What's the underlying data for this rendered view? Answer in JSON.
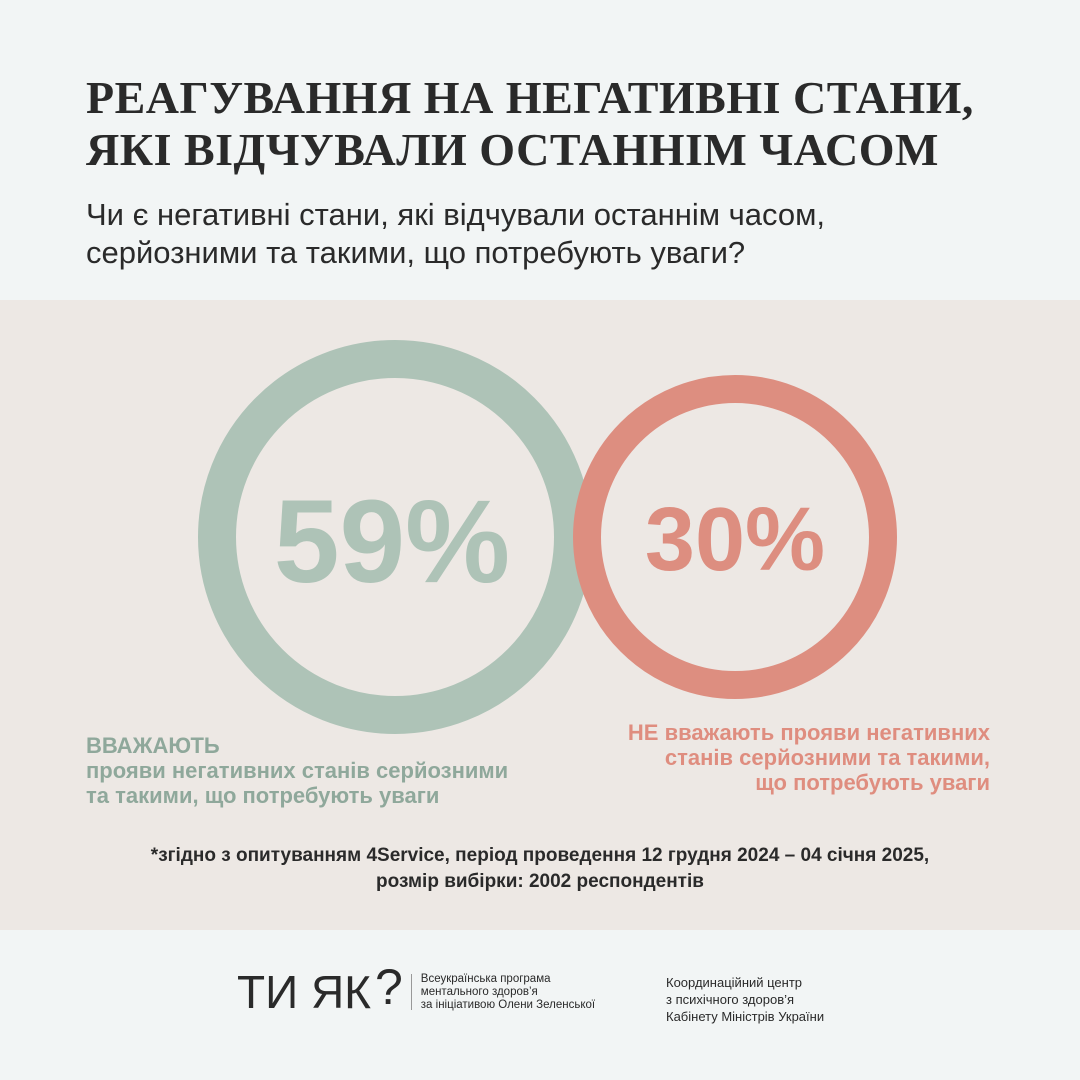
{
  "title": [
    "РЕАГУВАННЯ НА НЕГАТИВНІ СТАНИ,",
    "ЯКІ ВІДЧУВАЛИ ОСТАННІМ ЧАСОМ"
  ],
  "subtitle": [
    "Чи є негативні стани, які відчували останнім часом,",
    "серйозними та такими, що  потребують уваги?"
  ],
  "chart_data": {
    "type": "pie",
    "categories": [
      "ВВАЖАЮТЬ прояви негативних станів серйозними та такими, що потребують уваги",
      "НЕ вважають прояви негативних станів серйозними та такими, що потребують уваги"
    ],
    "values": [
      59,
      30
    ],
    "labels": [
      "59%",
      "30%"
    ],
    "colors": [
      "#aec3b7",
      "#dd8e80"
    ]
  },
  "left_label": {
    "head": "ВВАЖАЮТЬ",
    "lines": [
      "прояви негативних станів серйозними",
      "та такими, що потребують уваги"
    ]
  },
  "right_label": {
    "lines": [
      "НЕ вважають прояви негативних",
      "станів серйозними та такими,",
      "що потребують уваги"
    ]
  },
  "note": [
    "*згідно з опитуванням 4Service, період проведення 12 грудня 2024 – 04 січня 2025,",
    "розмір вибірки: 2002 респондентів"
  ],
  "footer": {
    "logo": "ТИ ЯК",
    "logo_mark": "?",
    "program": [
      "Всеукраїнська програма",
      "ментального здоров’я",
      "за ініціативою Олени Зеленської"
    ],
    "coordinator": [
      "Координаційний центр",
      "з психічного здоров’я",
      "Кабінету Міністрів України"
    ]
  }
}
